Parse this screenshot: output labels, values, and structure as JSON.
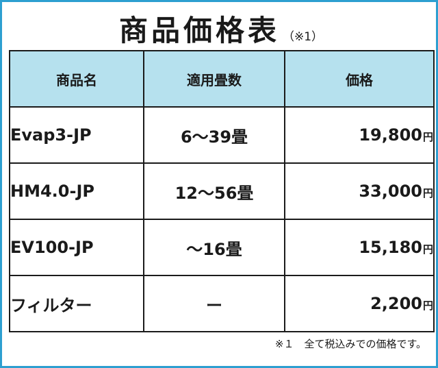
{
  "title": "商品価格表",
  "title_note": "（※1）",
  "table": {
    "headers": [
      "商品名",
      "適用畳数",
      "価格"
    ],
    "rows": [
      {
        "name": "Evap3-JP",
        "rooms": "6～39畳",
        "price": "19,800",
        "unit": "円"
      },
      {
        "name": "HM4.0-JP",
        "rooms": "12～56畳",
        "price": "33,000",
        "unit": "円"
      },
      {
        "name": "EV100-JP",
        "rooms": "～16畳",
        "price": "15,180",
        "unit": "円"
      },
      {
        "name": "フィルター",
        "rooms": "ー",
        "price": "2,200",
        "unit": "円"
      }
    ]
  },
  "footnote": "※１　全て税込みでの価格です。",
  "colors": {
    "frame_border": "#2d9fd0",
    "header_bg": "#b6e1ee",
    "text": "#1a1a1a"
  }
}
